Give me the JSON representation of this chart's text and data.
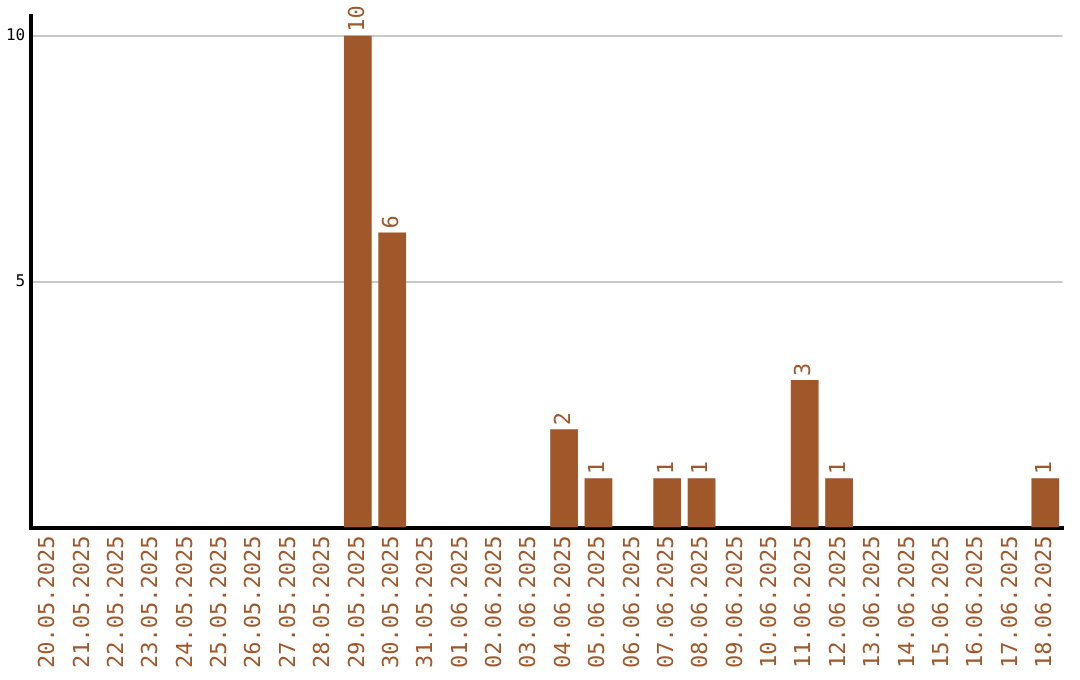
{
  "chart_data": {
    "type": "bar",
    "categories": [
      "20.05.2025",
      "21.05.2025",
      "22.05.2025",
      "23.05.2025",
      "24.05.2025",
      "25.05.2025",
      "26.05.2025",
      "27.05.2025",
      "28.05.2025",
      "29.05.2025",
      "30.05.2025",
      "31.05.2025",
      "01.06.2025",
      "02.06.2025",
      "03.06.2025",
      "04.06.2025",
      "05.06.2025",
      "06.06.2025",
      "07.06.2025",
      "08.06.2025",
      "09.06.2025",
      "10.06.2025",
      "11.06.2025",
      "12.06.2025",
      "13.06.2025",
      "14.06.2025",
      "15.06.2025",
      "16.06.2025",
      "17.06.2025",
      "18.06.2025"
    ],
    "values": [
      0,
      0,
      0,
      0,
      0,
      0,
      0,
      0,
      0,
      10,
      6,
      0,
      0,
      0,
      0,
      2,
      1,
      0,
      1,
      1,
      0,
      0,
      3,
      1,
      0,
      0,
      0,
      0,
      0,
      1
    ],
    "value_labels": [
      null,
      null,
      null,
      null,
      null,
      null,
      null,
      null,
      null,
      "10",
      "6",
      null,
      null,
      null,
      null,
      "2",
      "1",
      null,
      "1",
      "1",
      null,
      null,
      "3",
      "1",
      null,
      null,
      null,
      null,
      null,
      "1"
    ],
    "color": "#a0572a",
    "ylim": [
      0,
      10.4
    ],
    "yticks": [
      5,
      10
    ],
    "grid": "y",
    "legend": false
  }
}
